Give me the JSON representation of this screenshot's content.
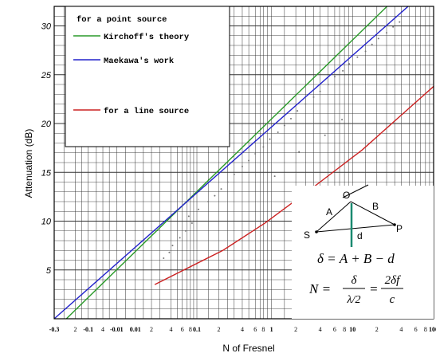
{
  "chart_data": {
    "type": "line",
    "title": "",
    "xlabel": "N of Fresnel",
    "ylabel": "Attenuation (dB)",
    "ylim": [
      0,
      32
    ],
    "grid": true,
    "x_ticks": [
      {
        "label": "-0.3",
        "u": 0
      },
      {
        "label": "2",
        "u": 0.26
      },
      {
        "label": "-0.1",
        "u": 0.42
      },
      {
        "label": "4",
        "u": 0.6
      },
      {
        "label": "-0.01",
        "u": 0.77
      },
      {
        "label": "0.01",
        "u": 1.0
      },
      {
        "label": "2",
        "u": 1.2
      },
      {
        "label": "4",
        "u": 1.44
      },
      {
        "label": "6",
        "u": 1.58
      },
      {
        "label": "8",
        "u": 1.68
      },
      {
        "label": "0.1",
        "u": 1.76
      },
      {
        "label": "2",
        "u": 2.03
      },
      {
        "label": "4",
        "u": 2.32
      },
      {
        "label": "6",
        "u": 2.48
      },
      {
        "label": "8",
        "u": 2.58
      },
      {
        "label": "1",
        "u": 2.68
      },
      {
        "label": "2",
        "u": 2.98
      },
      {
        "label": "4",
        "u": 3.28
      },
      {
        "label": "6",
        "u": 3.46
      },
      {
        "label": "8",
        "u": 3.58
      },
      {
        "label": "10",
        "u": 3.68
      },
      {
        "label": "2",
        "u": 3.98
      },
      {
        "label": "4",
        "u": 4.28
      },
      {
        "label": "6",
        "u": 4.46
      },
      {
        "label": "8",
        "u": 4.58
      },
      {
        "label": "100",
        "u": 4.68
      }
    ],
    "y_ticks": [
      5,
      10,
      15,
      20,
      25,
      30
    ],
    "legend": {
      "placement": "top-left",
      "header": "for a point source",
      "items": [
        {
          "label": "Kirchoff's theory",
          "color": "#2a9a2a"
        },
        {
          "label": "Maekawa's work",
          "color": "#2222cc"
        },
        {
          "label": "for a line source",
          "color": "#cc2222"
        }
      ]
    },
    "series": [
      {
        "label_ref": "Kirchoff's theory",
        "color": "#2a9a2a",
        "points": [
          [
            0.15,
            0.0
          ],
          [
            4.6,
            36.0
          ]
        ]
      },
      {
        "label_ref": "Maekawa's work",
        "color": "#2222cc",
        "points": [
          [
            0.0,
            0.0
          ],
          [
            4.68,
            34.3
          ]
        ]
      },
      {
        "label_ref": "for a line source",
        "color": "#cc2222",
        "points": [
          [
            1.24,
            3.5
          ],
          [
            2.08,
            7.0
          ],
          [
            2.6,
            9.8
          ],
          [
            3.2,
            13.5
          ],
          [
            3.8,
            17.3
          ],
          [
            4.3,
            21.0
          ],
          [
            4.68,
            23.8
          ]
        ]
      }
    ],
    "scatter_points": [
      [
        1.35,
        6.2
      ],
      [
        1.42,
        6.8
      ],
      [
        1.46,
        7.5
      ],
      [
        1.55,
        8.3
      ],
      [
        1.62,
        9.0
      ],
      [
        1.7,
        9.8
      ],
      [
        1.66,
        10.5
      ],
      [
        1.78,
        11.2
      ],
      [
        1.9,
        12.0
      ],
      [
        1.98,
        12.6
      ],
      [
        2.06,
        13.3
      ],
      [
        2.14,
        14.0
      ],
      [
        2.22,
        14.8
      ],
      [
        2.32,
        15.6
      ],
      [
        2.4,
        16.2
      ],
      [
        2.48,
        16.9
      ],
      [
        2.58,
        17.6
      ],
      [
        2.66,
        18.4
      ],
      [
        2.76,
        19.1
      ],
      [
        2.84,
        19.8
      ],
      [
        2.92,
        20.5
      ],
      [
        3.0,
        21.3
      ],
      [
        3.1,
        22.0
      ],
      [
        3.2,
        22.7
      ],
      [
        3.28,
        23.3
      ],
      [
        3.38,
        24.0
      ],
      [
        3.46,
        24.8
      ],
      [
        3.56,
        25.4
      ],
      [
        3.64,
        26.1
      ],
      [
        3.74,
        26.8
      ],
      [
        3.84,
        27.4
      ],
      [
        3.92,
        28.1
      ],
      [
        4.0,
        28.7
      ],
      [
        4.1,
        29.3
      ],
      [
        4.18,
        29.9
      ],
      [
        4.26,
        30.4
      ],
      [
        3.34,
        18.8
      ],
      [
        3.55,
        20.4
      ],
      [
        3.02,
        17.1
      ],
      [
        2.72,
        14.6
      ]
    ],
    "inset": {
      "labels": {
        "O": "O",
        "S": "S",
        "P": "P",
        "A": "A",
        "B": "B",
        "d": "d"
      },
      "formula1": "δ = A + B − d",
      "formula2_lhs": "N =",
      "formula2_num1": "δ",
      "formula2_den1": "λ/2",
      "formula2_eq": "=",
      "formula2_num2": "2δf",
      "formula2_den2": "c"
    }
  }
}
